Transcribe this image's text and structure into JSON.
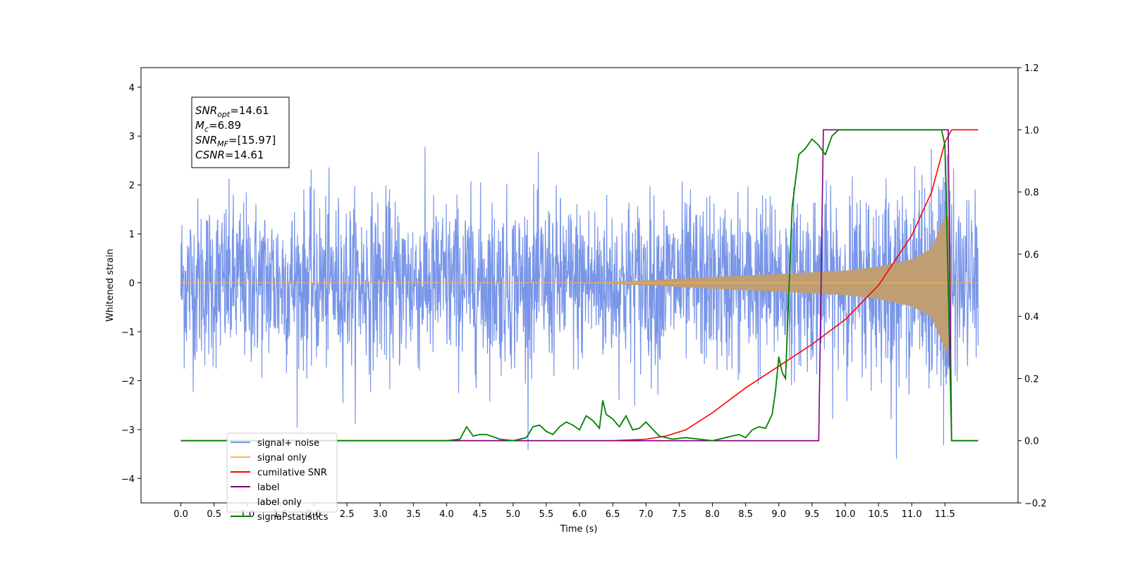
{
  "chart_data": {
    "type": "line",
    "xlabel": "Time (s)",
    "ylabel_left": "Whitened strain",
    "xlim": [
      -0.6,
      12.6
    ],
    "ylim_left": [
      -4.5,
      4.4
    ],
    "ylim_right": [
      -0.2,
      1.2
    ],
    "x_ticks": [
      0.0,
      0.5,
      1.0,
      1.5,
      2.0,
      2.5,
      3.0,
      3.5,
      4.0,
      4.5,
      5.0,
      5.5,
      6.0,
      6.5,
      7.0,
      7.5,
      8.0,
      8.5,
      9.0,
      9.5,
      10.0,
      10.5,
      11.0,
      11.5
    ],
    "x_tick_labels": [
      "0.0",
      "0.5",
      "1.0",
      "1.5",
      "2.0",
      "2.5",
      "3.0",
      "3.5",
      "4.0",
      "4.5",
      "5.0",
      "5.5",
      "6.0",
      "6.5",
      "7.0",
      "7.5",
      "8.0",
      "8.5",
      "9.0",
      "9.5",
      "10.0",
      "10.5",
      "11.0",
      "11.5"
    ],
    "y_left_ticks": [
      -4,
      -3,
      -2,
      -1,
      0,
      1,
      2,
      3,
      4
    ],
    "y_left_tick_labels": [
      "−4",
      "−3",
      "−2",
      "−1",
      "0",
      "1",
      "2",
      "3",
      "4"
    ],
    "y_right_ticks": [
      -0.2,
      0.0,
      0.2,
      0.4,
      0.6,
      0.8,
      1.0,
      1.2
    ],
    "y_right_tick_labels": [
      "−0.2",
      "0.0",
      "0.2",
      "0.4",
      "0.6",
      "0.8",
      "1.0",
      "1.2"
    ],
    "grid": false,
    "legend_position": "bottom-left",
    "annotation_box": {
      "lines": [
        {
          "base": "SNR",
          "sub": "opt",
          "value": "=14.61"
        },
        {
          "base": "M",
          "sub": "c",
          "value": "=6.89"
        },
        {
          "base": "SNR",
          "sub": "MF",
          "value": "=[15.97]"
        },
        {
          "base": "CSNR",
          "sub": "",
          "value": "=14.61"
        }
      ]
    },
    "series": [
      {
        "name": "signal+ noise",
        "axis": "left",
        "color": "#7895e8",
        "style": "noise",
        "noise_sd": 0.85,
        "x_range": [
          0.0,
          12.0
        ]
      },
      {
        "name": "signal only",
        "axis": "left",
        "color": "#f5b55c",
        "style": "envelope",
        "envelope_x": [
          0.0,
          6.0,
          7.0,
          8.0,
          9.0,
          10.0,
          10.5,
          11.0,
          11.3,
          11.45,
          11.55,
          11.6,
          12.0
        ],
        "envelope_y": [
          0.0,
          0.0,
          0.05,
          0.12,
          0.18,
          0.25,
          0.33,
          0.48,
          0.7,
          1.2,
          1.5,
          0.0,
          0.0
        ]
      },
      {
        "name": "cumilative SNR",
        "axis": "right",
        "color": "#ff0000",
        "x": [
          0.0,
          6.5,
          7.0,
          7.3,
          7.6,
          8.0,
          8.5,
          9.0,
          9.5,
          10.0,
          10.5,
          11.0,
          11.3,
          11.5,
          11.6,
          12.0
        ],
        "y": [
          0.0,
          0.0,
          0.005,
          0.015,
          0.035,
          0.09,
          0.17,
          0.24,
          0.31,
          0.39,
          0.5,
          0.66,
          0.8,
          0.96,
          1.0,
          1.0
        ]
      },
      {
        "name": "label",
        "axis": "right",
        "color": "#800080",
        "x": [
          0.0,
          9.6,
          9.67,
          11.55,
          11.6,
          12.0
        ],
        "y": [
          0.0,
          0.0,
          1.0,
          1.0,
          0.0,
          0.0
        ]
      },
      {
        "name": "label only",
        "axis": "right",
        "color": "#ffffff",
        "x": [],
        "y": []
      },
      {
        "name": "signal statistics",
        "axis": "right",
        "color": "#008000",
        "x": [
          0.0,
          4.0,
          4.2,
          4.3,
          4.4,
          4.5,
          4.6,
          4.8,
          5.0,
          5.2,
          5.3,
          5.4,
          5.5,
          5.6,
          5.7,
          5.8,
          5.9,
          6.0,
          6.1,
          6.2,
          6.3,
          6.35,
          6.4,
          6.5,
          6.6,
          6.7,
          6.8,
          6.9,
          7.0,
          7.2,
          7.4,
          7.6,
          7.8,
          8.0,
          8.2,
          8.4,
          8.5,
          8.6,
          8.7,
          8.8,
          8.9,
          8.95,
          9.0,
          9.05,
          9.1,
          9.2,
          9.3,
          9.4,
          9.5,
          9.6,
          9.7,
          9.8,
          9.9,
          10.0,
          10.5,
          11.0,
          11.4,
          11.45,
          11.5,
          11.55,
          11.6,
          11.7,
          12.0
        ],
        "y": [
          0.0,
          0.0,
          0.005,
          0.045,
          0.015,
          0.02,
          0.02,
          0.005,
          0.0,
          0.01,
          0.045,
          0.05,
          0.03,
          0.02,
          0.045,
          0.06,
          0.05,
          0.035,
          0.08,
          0.065,
          0.04,
          0.13,
          0.085,
          0.07,
          0.045,
          0.08,
          0.035,
          0.04,
          0.06,
          0.015,
          0.005,
          0.01,
          0.005,
          0.0,
          0.01,
          0.02,
          0.01,
          0.035,
          0.045,
          0.04,
          0.085,
          0.16,
          0.27,
          0.22,
          0.2,
          0.75,
          0.92,
          0.94,
          0.97,
          0.95,
          0.92,
          0.98,
          1.0,
          1.0,
          1.0,
          1.0,
          1.0,
          1.0,
          0.95,
          0.5,
          0.0,
          0.0,
          0.0
        ]
      }
    ]
  }
}
